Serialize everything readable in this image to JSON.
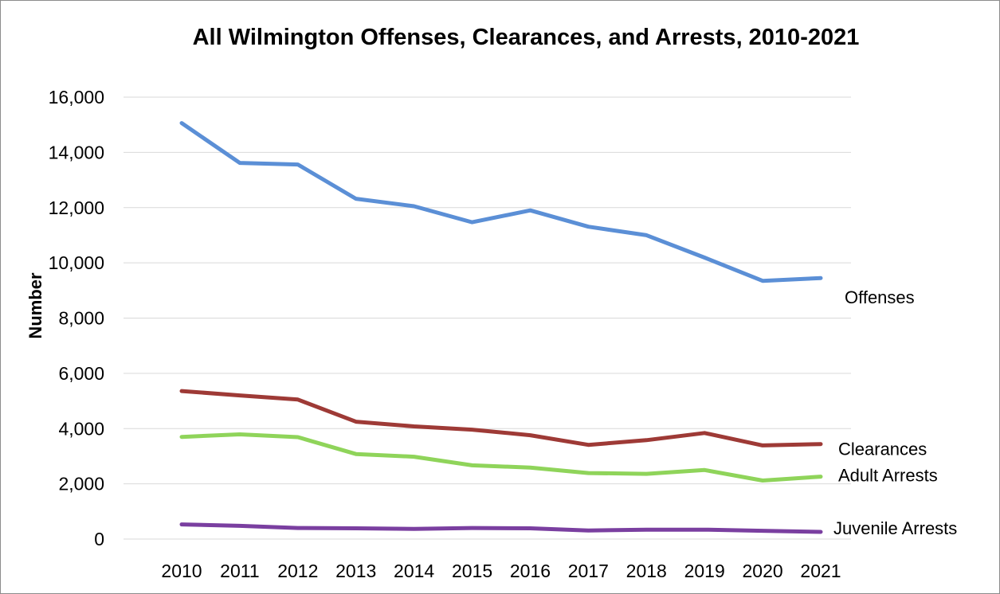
{
  "chart_data": {
    "type": "line",
    "title": "All Wilmington Offenses, Clearances, and Arrests, 2010-2021",
    "xlabel": "",
    "ylabel": "Number",
    "categories": [
      "2010",
      "2011",
      "2012",
      "2013",
      "2014",
      "2015",
      "2016",
      "2017",
      "2018",
      "2019",
      "2020",
      "2021"
    ],
    "ylim": [
      0,
      16000
    ],
    "yticks": [
      0,
      2000,
      4000,
      6000,
      8000,
      10000,
      12000,
      14000,
      16000
    ],
    "ytick_labels": [
      "0",
      "2,000",
      "4,000",
      "6,000",
      "8,000",
      "10,000",
      "12,000",
      "14,000",
      "16,000"
    ],
    "grid": true,
    "legend": "series labels at right end of lines",
    "series": [
      {
        "name": "Offenses",
        "color": "#5b8fd6",
        "values": [
          15060,
          13620,
          13560,
          12320,
          12050,
          11470,
          11900,
          11310,
          11000,
          10190,
          9350,
          9450
        ]
      },
      {
        "name": "Clearances",
        "color": "#9e3a36",
        "values": [
          5360,
          5200,
          5050,
          4250,
          4080,
          3960,
          3760,
          3410,
          3580,
          3840,
          3390,
          3440
        ]
      },
      {
        "name": "Adult Arrests",
        "color": "#8fd45a",
        "values": [
          3700,
          3790,
          3690,
          3080,
          2980,
          2670,
          2590,
          2390,
          2360,
          2500,
          2120,
          2260
        ]
      },
      {
        "name": "Juvenile Arrests",
        "color": "#7a3fa0",
        "values": [
          530,
          480,
          400,
          390,
          370,
          400,
          390,
          310,
          340,
          340,
          300,
          260
        ]
      }
    ]
  }
}
